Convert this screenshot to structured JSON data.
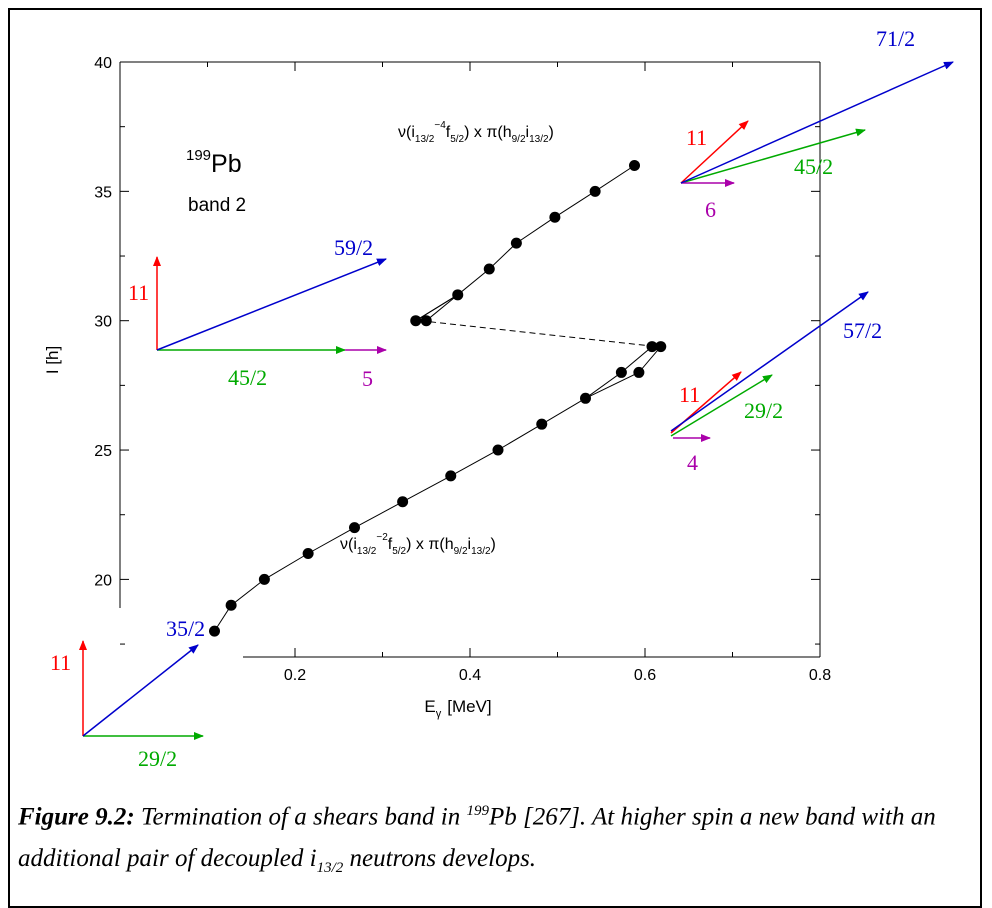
{
  "chart_data": {
    "type": "scatter",
    "xlabel": "E",
    "xlabel_sub": "γ",
    "xlabel_unit": "[MeV]",
    "ylabel": "I [h]",
    "xlim": [
      0.0,
      0.8
    ],
    "ylim": [
      17,
      40
    ],
    "xticks": [
      0.2,
      0.4,
      0.6,
      0.8
    ],
    "xtick_labels": [
      "0.2",
      "0.4",
      "0.6",
      "0.8"
    ],
    "yticks": [
      20,
      25,
      30,
      35,
      40
    ],
    "ytick_labels": [
      "20",
      "25",
      "30",
      "35",
      "40"
    ],
    "grid": false,
    "nucleus": {
      "mass": "199",
      "symbol": "Pb"
    },
    "band_label": "band 2",
    "series": [
      {
        "points": [
          [
            0.108,
            18
          ],
          [
            0.127,
            19
          ],
          [
            0.165,
            20
          ],
          [
            0.215,
            21
          ],
          [
            0.268,
            22
          ],
          [
            0.323,
            23
          ],
          [
            0.378,
            24
          ],
          [
            0.432,
            25
          ],
          [
            0.482,
            26
          ],
          [
            0.532,
            27
          ],
          [
            0.593,
            28
          ],
          [
            0.618,
            29
          ]
        ]
      },
      {
        "points": [
          [
            0.573,
            28
          ],
          [
            0.608,
            29
          ]
        ]
      },
      {
        "points": [
          [
            0.338,
            30
          ],
          [
            0.386,
            31
          ],
          [
            0.422,
            32
          ],
          [
            0.453,
            33
          ],
          [
            0.497,
            34
          ],
          [
            0.543,
            35
          ],
          [
            0.588,
            36
          ]
        ]
      },
      {
        "points": [
          [
            0.35,
            30
          ]
        ]
      }
    ],
    "transition": {
      "from": [
        0.343,
        30
      ],
      "to": [
        0.613,
        29
      ]
    },
    "config_upper": {
      "pre": "ν(i",
      "s1": "13/2",
      "sup1": "−4",
      "mid1": "f",
      "s2": "5/2",
      "mid2": ") x π(h",
      "s3": "9/2",
      "mid3": "i",
      "s4": "13/2",
      "end": ")"
    },
    "config_lower": {
      "pre": "ν(i",
      "s1": "13/2",
      "sup1": "−2",
      "mid1": "f",
      "s2": "5/2",
      "mid2": ") x π(h",
      "s3": "9/2",
      "mid3": "i",
      "s4": "13/2",
      "end": ")"
    },
    "vector_diagrams": [
      {
        "vectors": [
          {
            "label": "11",
            "color": "#ff0000"
          },
          {
            "label": "29/2",
            "color": "#00aa00"
          },
          {
            "label": "35/2",
            "color": "#0000cc"
          }
        ]
      },
      {
        "vectors": [
          {
            "label": "11",
            "color": "#ff0000"
          },
          {
            "label": "45/2",
            "color": "#00aa00"
          },
          {
            "label": "5",
            "color": "#aa00aa"
          },
          {
            "label": "59/2",
            "color": "#0000cc"
          }
        ]
      },
      {
        "vectors": [
          {
            "label": "11",
            "color": "#ff0000"
          },
          {
            "label": "29/2",
            "color": "#00aa00"
          },
          {
            "label": "4",
            "color": "#aa00aa"
          },
          {
            "label": "57/2",
            "color": "#0000cc"
          }
        ]
      },
      {
        "vectors": [
          {
            "label": "11",
            "color": "#ff0000"
          },
          {
            "label": "45/2",
            "color": "#00aa00"
          },
          {
            "label": "6",
            "color": "#aa00aa"
          },
          {
            "label": "71/2",
            "color": "#0000cc"
          }
        ]
      }
    ]
  },
  "caption": {
    "figure": "Figure 9.2:",
    "text1": " Termination of a shears band in ",
    "isotope_mass": "199",
    "isotope_symbol": "Pb [267]. At higher spin a new band with an additional pair of decoupled i",
    "sub": "13/2",
    "text2": " neutrons develops."
  }
}
